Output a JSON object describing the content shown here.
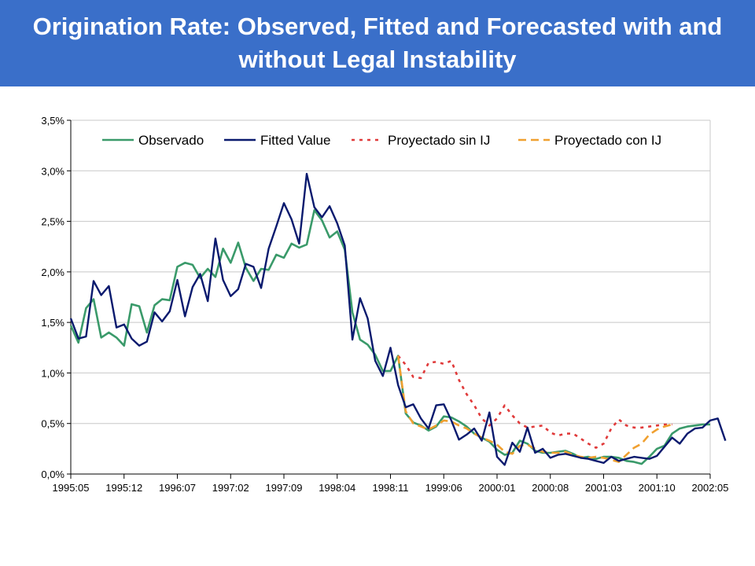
{
  "header": {
    "title": "Origination Rate: Observed, Fitted and Forecasted with and without Legal Instability",
    "background": "#3a6fc9"
  },
  "chart_data": {
    "type": "line",
    "title": "",
    "xlabel": "",
    "ylabel": "",
    "ylim": [
      0,
      3.5
    ],
    "y_ticks": [
      "0,0%",
      "0,5%",
      "1,0%",
      "1,5%",
      "2,0%",
      "2,5%",
      "3,0%",
      "3,5%"
    ],
    "x_tick_labels": [
      "1995:05",
      "1995:12",
      "1996:07",
      "1997:02",
      "1997:09",
      "1998:04",
      "1998:11",
      "1999:06",
      "2000:01",
      "2000:08",
      "2001:03",
      "2001:10",
      "2002:05"
    ],
    "grid": true,
    "legend_position": "top",
    "series": [
      {
        "name": "Observado",
        "color": "#3a9a6a",
        "dash": "solid",
        "values": [
          1.47,
          1.3,
          1.64,
          1.73,
          1.35,
          1.4,
          1.35,
          1.27,
          1.68,
          1.66,
          1.4,
          1.67,
          1.73,
          1.72,
          2.05,
          2.09,
          2.07,
          1.94,
          2.03,
          1.95,
          2.23,
          2.09,
          2.29,
          2.04,
          1.91,
          2.03,
          2.02,
          2.17,
          2.14,
          2.28,
          2.24,
          2.27,
          2.61,
          2.51,
          2.34,
          2.4,
          2.22,
          1.6,
          1.33,
          1.28,
          1.18,
          1.02,
          1.02,
          1.17,
          0.6,
          0.51,
          0.48,
          0.43,
          0.47,
          0.57,
          0.56,
          0.52,
          0.47,
          0.4,
          0.36,
          0.32,
          0.24,
          0.19,
          0.21,
          0.33,
          0.3,
          0.23,
          0.21,
          0.21,
          0.22,
          0.23,
          0.2,
          0.16,
          0.17,
          0.15,
          0.17,
          0.17,
          0.16,
          0.13,
          0.12,
          0.1,
          0.17,
          0.25,
          0.28,
          0.4,
          0.45,
          0.47,
          0.48,
          0.49,
          0.49
        ]
      },
      {
        "name": "Fitted Value",
        "color": "#0a1a6e",
        "dash": "solid",
        "values": [
          1.54,
          1.34,
          1.36,
          1.91,
          1.77,
          1.86,
          1.45,
          1.48,
          1.34,
          1.27,
          1.31,
          1.6,
          1.51,
          1.61,
          1.92,
          1.56,
          1.85,
          1.98,
          1.71,
          2.33,
          1.92,
          1.76,
          1.83,
          2.08,
          2.05,
          1.84,
          2.23,
          2.45,
          2.68,
          2.52,
          2.28,
          2.97,
          2.64,
          2.54,
          2.65,
          2.48,
          2.26,
          1.33,
          1.74,
          1.54,
          1.12,
          0.97,
          1.25,
          0.88,
          0.66,
          0.69,
          0.55,
          0.45,
          0.68,
          0.69,
          0.53,
          0.34,
          0.39,
          0.45,
          0.33,
          0.61,
          0.17,
          0.09,
          0.31,
          0.22,
          0.46,
          0.21,
          0.25,
          0.16,
          0.19,
          0.2,
          0.18,
          0.16,
          0.15,
          0.13,
          0.11,
          0.17,
          0.13,
          0.15,
          0.17,
          0.16,
          0.15,
          0.18,
          0.27,
          0.36,
          0.3,
          0.4,
          0.45,
          0.46,
          0.53,
          0.55,
          0.33
        ]
      },
      {
        "name": "Proyectado sin IJ",
        "color": "#e03a3a",
        "dash": "4 6",
        "start_index": 43,
        "values": [
          1.17,
          1.08,
          0.96,
          0.95,
          1.1,
          1.11,
          1.09,
          1.12,
          0.93,
          0.79,
          0.68,
          0.55,
          0.48,
          0.55,
          0.68,
          0.58,
          0.5,
          0.46,
          0.47,
          0.48,
          0.41,
          0.38,
          0.4,
          0.4,
          0.35,
          0.3,
          0.26,
          0.3,
          0.45,
          0.54,
          0.48,
          0.46,
          0.46,
          0.47,
          0.48,
          0.49,
          0.49
        ]
      },
      {
        "name": "Proyectado con IJ",
        "color": "#f0a030",
        "dash": "10 6",
        "start_index": 43,
        "values": [
          1.17,
          0.62,
          0.5,
          0.47,
          0.44,
          0.48,
          0.53,
          0.52,
          0.48,
          0.45,
          0.4,
          0.36,
          0.33,
          0.29,
          0.22,
          0.2,
          0.28,
          0.29,
          0.25,
          0.22,
          0.21,
          0.21,
          0.22,
          0.19,
          0.17,
          0.16,
          0.17,
          0.16,
          0.14,
          0.12,
          0.19,
          0.26,
          0.3,
          0.39,
          0.44,
          0.47,
          0.49
        ]
      }
    ]
  }
}
